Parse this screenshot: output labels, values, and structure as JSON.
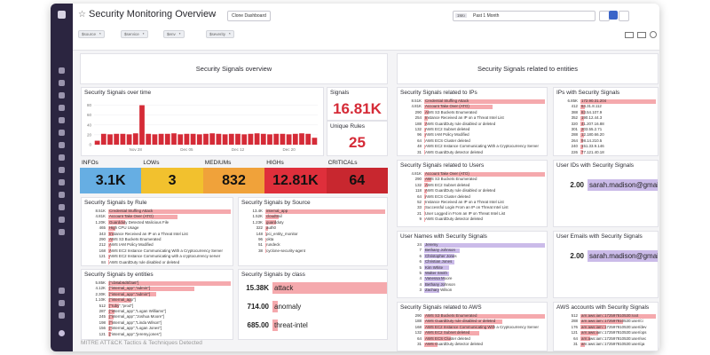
{
  "header": {
    "title": "Security Monitoring Overview",
    "clone_button": "Clone Dashboard",
    "time_badge": "1Mo",
    "time_range": "Past 1 Month"
  },
  "template_variables": [
    {
      "name": "$source",
      "value": "*"
    },
    {
      "name": "$service",
      "value": "*"
    },
    {
      "name": "$env",
      "value": "*"
    },
    {
      "name": "$severity",
      "value": "*"
    }
  ],
  "groups": [
    "Security Signals overview",
    "Security Signals related to entities"
  ],
  "signals_over_time": {
    "type": "bar",
    "title": "Security Signals over time",
    "categories": [
      null,
      null,
      null,
      null,
      null,
      null,
      "Nov 28",
      null,
      null,
      null,
      null,
      null,
      null,
      null,
      "Dec 05",
      null,
      null,
      null,
      null,
      null,
      null,
      null,
      "Dec 12",
      null,
      null,
      null,
      null,
      null,
      null,
      null,
      "Dec 20",
      null,
      null,
      null,
      null
    ],
    "values": [
      8,
      22,
      21,
      22,
      22,
      21,
      23,
      80,
      22,
      21,
      22,
      22,
      23,
      21,
      22,
      22,
      21,
      22,
      23,
      22,
      21,
      22,
      22,
      21,
      22,
      23,
      22,
      21,
      22,
      22,
      21,
      22,
      23,
      22,
      14
    ],
    "color": "#d52b37",
    "ylim": [
      0,
      90
    ],
    "yticks": [
      0,
      20,
      40,
      60,
      80
    ]
  },
  "signals": {
    "label": "Signals",
    "value": "16.81K"
  },
  "unique_rules": {
    "label": "Unique Rules",
    "value": "25"
  },
  "severities": [
    {
      "label": "INFOs",
      "value": "3.1K",
      "color": "#66aee3"
    },
    {
      "label": "LOWs",
      "value": "3",
      "color": "#f2c12e"
    },
    {
      "label": "MEDIUMs",
      "value": "832",
      "color": "#f0a23a"
    },
    {
      "label": "HIGHs",
      "value": "12.81K",
      "color": "#df2f3b"
    },
    {
      "label": "CRITICALs",
      "value": "64",
      "color": "#c8272f"
    }
  ],
  "lists": [
    {
      "title": "Security Signals by Rule",
      "color": "#f5a9ad",
      "rows": [
        {
          "label": "Credential Stuffing Attack",
          "value": 8510,
          "value_label": "8.51K"
        },
        {
          "label": "Account Take Over (ATO)",
          "value": 4810,
          "value_label": "4.81K"
        },
        {
          "label": "Guardduty Detected Malicious File",
          "value": 1200,
          "value_label": "1.20K"
        },
        {
          "label": "High CPU Usage",
          "value": 465,
          "value_label": "465"
        },
        {
          "label": "Instance Received an IP on a Threat Intel List",
          "value": 343,
          "value_label": "343"
        },
        {
          "label": "AWS S3 Buckets Enumerated",
          "value": 290,
          "value_label": "290"
        },
        {
          "label": "AWS IAM Policy Modified",
          "value": 212,
          "value_label": "212"
        },
        {
          "label": "AWS EC2 Instance Communicating With a Cryptocurrency Server",
          "value": 168,
          "value_label": "168"
        },
        {
          "label": "AWS EC2 Instance Communicating with a cryptocurrency server",
          "value": 121,
          "value_label": "121"
        },
        {
          "label": "AWS GuardDuty rule disabled or deleted",
          "value": 84,
          "value_label": "84"
        }
      ]
    },
    {
      "title": "Security Signals by Source",
      "color": "#f5a9ad",
      "rows": [
        {
          "label": "internal_app",
          "value": 13400,
          "value_label": "13.4K"
        },
        {
          "label": "cloudtrail",
          "value": 1520,
          "value_label": "1.52K"
        },
        {
          "label": "guardduty",
          "value": 1230,
          "value_label": "1.23K"
        },
        {
          "label": "auth0",
          "value": 322,
          "value_label": "322"
        },
        {
          "label": "pci_entity_monitor",
          "value": 148,
          "value_label": "148"
        },
        {
          "label": "okta",
          "value": 96,
          "value_label": "96"
        },
        {
          "label": "rundeck",
          "value": 51,
          "value_label": "51"
        },
        {
          "label": "cyclone-security-agent",
          "value": 38,
          "value_label": "38"
        }
      ]
    },
    {
      "title": "Security Signals by entities",
      "color": "#f5a9ad",
      "rows": [
        {
          "label": "[\"cb8ab6d5f3a6\"]",
          "value": 5850,
          "value_label": "5.85K"
        },
        {
          "label": "[\"internal_app\",\"admin\"]",
          "value": 4120,
          "value_label": "4.12K"
        },
        {
          "label": "[\"internal_app\",\"admin\"]",
          "value": 2300,
          "value_label": "2.30K"
        },
        {
          "label": "[\"internal_app\"]",
          "value": 1100,
          "value_label": "1.10K"
        },
        {
          "label": "[\"ruby\",\"prod\"]",
          "value": 512,
          "value_label": "512"
        },
        {
          "label": "[\"internal_app\",\"Logan Williams\"]",
          "value": 287,
          "value_label": "287"
        },
        {
          "label": "[\"internal_app\",\"Joshua Moore\"]",
          "value": 245,
          "value_label": "245"
        },
        {
          "label": "[\"internal_app\",\"Linda Wilson\"]",
          "value": 198,
          "value_label": "198"
        },
        {
          "label": "[\"internal_app\",\"Logan Jones\"]",
          "value": 156,
          "value_label": "156"
        },
        {
          "label": "[\"internal_app\",\"jeremy.jones\"]",
          "value": 121,
          "value_label": "121"
        }
      ]
    },
    {
      "title": "Security Signals related to IPs",
      "color": "#f5a9ad",
      "rows": [
        {
          "label": "Credential Stuffing Attack",
          "value": 8510,
          "value_label": "8.51K"
        },
        {
          "label": "Account Take Over (ATO)",
          "value": 4810,
          "value_label": "4.81K"
        },
        {
          "label": "AWS S3 Buckets Enumerated",
          "value": 290,
          "value_label": "290"
        },
        {
          "label": "Instance Received an IP on a Threat Intel List",
          "value": 254,
          "value_label": "254"
        },
        {
          "label": "AWS GuardDuty rule disabled or deleted",
          "value": 188,
          "value_label": "188"
        },
        {
          "label": "AWS EC2 Subnet deleted",
          "value": 132,
          "value_label": "132"
        },
        {
          "label": "AWS IAM Policy Modified",
          "value": 96,
          "value_label": "96"
        },
        {
          "label": "AWS ECS Cluster deleted",
          "value": 64,
          "value_label": "64"
        },
        {
          "label": "AWS EC2 Instance Communicating With a Cryptocurrency Server",
          "value": 48,
          "value_label": "48"
        },
        {
          "label": "AWS GuardDuty detector deleted",
          "value": 31,
          "value_label": "31"
        }
      ]
    },
    {
      "title": "IPs with Security Signals",
      "color": "#f5a9ad",
      "rows": [
        {
          "label": "172.90.31.204",
          "value": 6850,
          "value_label": "6.85K"
        },
        {
          "label": "64.31.8.112",
          "value": 412,
          "value_label": "412"
        },
        {
          "label": "83.54.107.9",
          "value": 388,
          "value_label": "388"
        },
        {
          "label": "190.12.44.3",
          "value": 352,
          "value_label": "352"
        },
        {
          "label": "41.207.16.88",
          "value": 320,
          "value_label": "320"
        },
        {
          "label": "203.55.2.71",
          "value": 301,
          "value_label": "301"
        },
        {
          "label": "12.180.66.20",
          "value": 288,
          "value_label": "288"
        },
        {
          "label": "98.14.210.5",
          "value": 264,
          "value_label": "264"
        },
        {
          "label": "151.33.9.146",
          "value": 240,
          "value_label": "240"
        },
        {
          "label": "77.121.40.18",
          "value": 226,
          "value_label": "226"
        }
      ]
    },
    {
      "title": "Security Signals related to Users",
      "color": "#f5a9ad",
      "rows": [
        {
          "label": "Account Take Over (ATO)",
          "value": 4810,
          "value_label": "4.81K"
        },
        {
          "label": "AWS S3 Buckets Enumerated",
          "value": 290,
          "value_label": "290"
        },
        {
          "label": "AWS EC2 Subnet deleted",
          "value": 132,
          "value_label": "132"
        },
        {
          "label": "AWS GuardDuty rule disabled or deleted",
          "value": 118,
          "value_label": "118"
        },
        {
          "label": "AWS ECS Cluster deleted",
          "value": 64,
          "value_label": "64"
        },
        {
          "label": "Instance Received an IP on a Threat Intel List",
          "value": 52,
          "value_label": "52"
        },
        {
          "label": "Successful Login From an IP on Threat Intel List",
          "value": 33,
          "value_label": "33"
        },
        {
          "label": "User Logged in From an IP on Threat Intel List",
          "value": 21,
          "value_label": "21"
        },
        {
          "label": "AWS GuardDuty detector deleted",
          "value": 9,
          "value_label": "9"
        }
      ]
    },
    {
      "title": "User Names with Security Signals",
      "color": "#cbbbe9",
      "rows": [
        {
          "label": "Jeremy",
          "value": 24,
          "value_label": "24"
        },
        {
          "label": "Bethany Johnson",
          "value": 7,
          "value_label": "7"
        },
        {
          "label": "Christopher Jones",
          "value": 6,
          "value_label": "6"
        },
        {
          "label": "Christian Jones",
          "value": 6,
          "value_label": "6"
        },
        {
          "label": "Kim White",
          "value": 5,
          "value_label": "5"
        },
        {
          "label": "Walter Smith",
          "value": 5,
          "value_label": "5"
        },
        {
          "label": "Vanessa Moore",
          "value": 4,
          "value_label": "4"
        },
        {
          "label": "Bethany Johnson",
          "value": 4,
          "value_label": "4"
        },
        {
          "label": "Zachary Wilson",
          "value": 3,
          "value_label": "3"
        }
      ]
    },
    {
      "title": "Security Signals related to AWS",
      "color": "#f5a9ad",
      "rows": [
        {
          "label": "AWS S3 Buckets Enumerated",
          "value": 290,
          "value_label": "290"
        },
        {
          "label": "AWS GuardDuty rule disabled or deleted",
          "value": 188,
          "value_label": "188"
        },
        {
          "label": "AWS EC2 Instance Communicating With a Cryptocurrency Server",
          "value": 168,
          "value_label": "168"
        },
        {
          "label": "AWS EC2 Subnet deleted",
          "value": 132,
          "value_label": "132"
        },
        {
          "label": "AWS ECS Cluster deleted",
          "value": 64,
          "value_label": "64"
        },
        {
          "label": "AWS GuardDuty detector deleted",
          "value": 31,
          "value_label": "31"
        }
      ]
    },
    {
      "title": "AWS accounts with Security Signals",
      "color": "#f5a9ad",
      "rows": [
        {
          "label": "arn:aws:iam::172597810530:root",
          "value": 512,
          "value_label": "512"
        },
        {
          "label": "arn:aws:iam::172597810530:user/ci",
          "value": 288,
          "value_label": "288"
        },
        {
          "label": "arn:aws:iam::172597810530:user/dev",
          "value": 176,
          "value_label": "176"
        },
        {
          "label": "arn:aws:iam::172597810530:user/ops",
          "value": 121,
          "value_label": "121"
        },
        {
          "label": "arn:aws:iam::172597810530:user/sec",
          "value": 64,
          "value_label": "64"
        },
        {
          "label": "arn:aws:iam::172597810530:user/qa",
          "value": 31,
          "value_label": "31"
        }
      ]
    }
  ],
  "large_lists": [
    {
      "title": "Security Signals by class",
      "color": "#f5a9ad",
      "rows": [
        {
          "label": "attack",
          "value": 15380,
          "value_label": "15.38K"
        },
        {
          "label": "anomaly",
          "value": 714,
          "value_label": "714.00"
        },
        {
          "label": "threat-intel",
          "value": 685,
          "value_label": "685.00"
        }
      ]
    },
    {
      "title": "User IDs with Security Signals",
      "color": "#cbbbe9",
      "rows": [
        {
          "label": "sarah.madison@gmail.com",
          "value": 2,
          "value_label": "2.00"
        }
      ]
    },
    {
      "title": "User Emails with Security Signals",
      "color": "#cbbbe9",
      "rows": [
        {
          "label": "sarah.madison@gmail.com",
          "value": 2,
          "value_label": "2.00"
        }
      ]
    }
  ],
  "footer_section": "MITRE ATT&CK Tactics & Techniques Detected"
}
